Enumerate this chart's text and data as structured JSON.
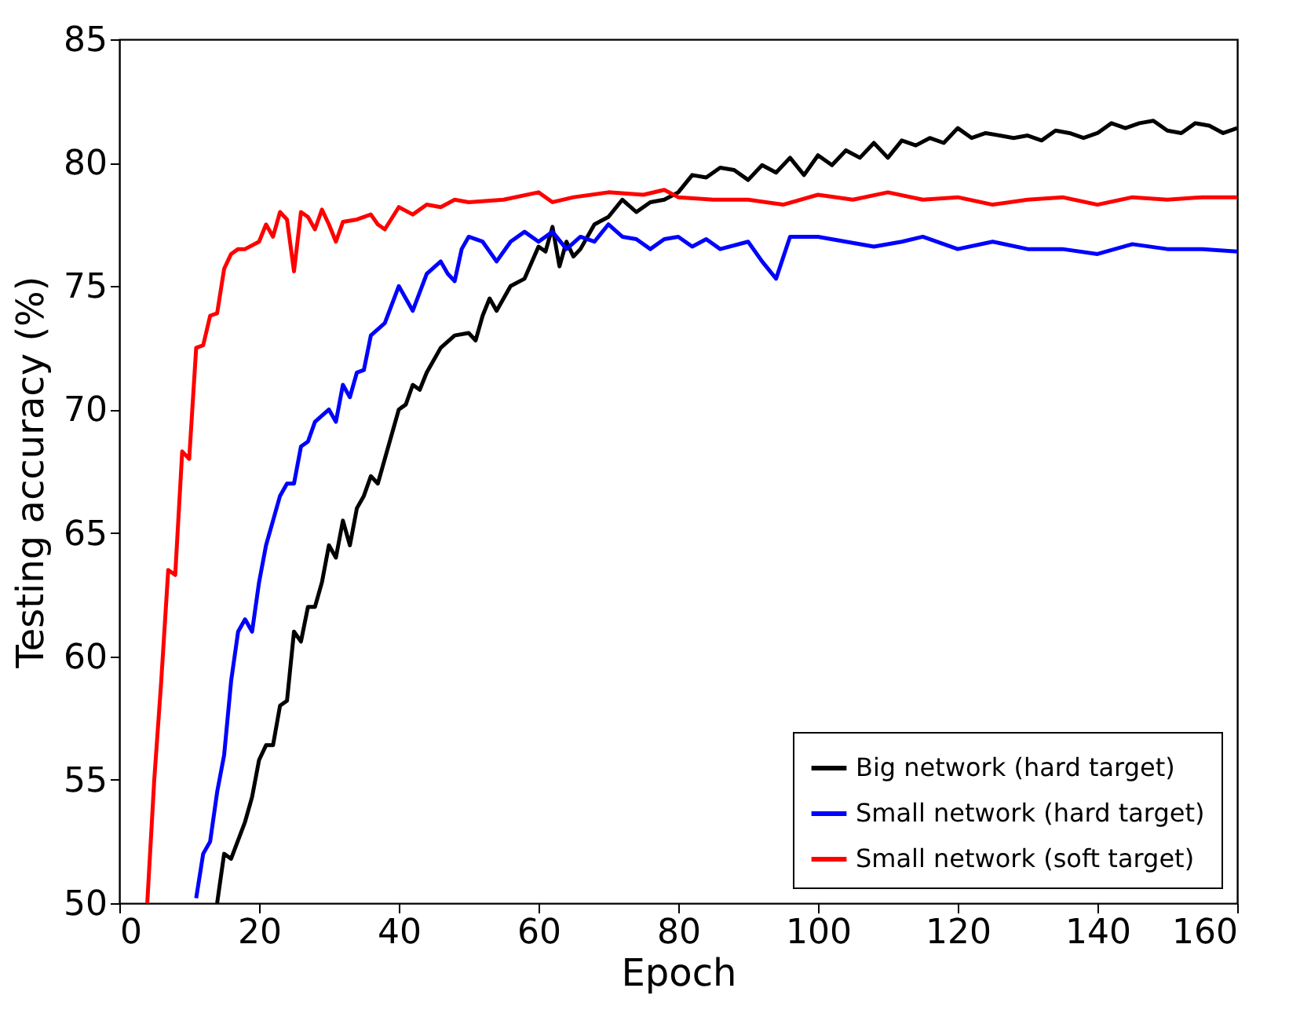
{
  "chart_data": {
    "type": "line",
    "xlabel": "Epoch",
    "ylabel": "Testing accuracy (%)",
    "xlim": [
      0,
      160
    ],
    "xticks": [
      0,
      20,
      40,
      60,
      80,
      100,
      120,
      140,
      160
    ],
    "ylim": [
      50,
      85
    ],
    "yticks": [
      50,
      55,
      60,
      65,
      70,
      75,
      80,
      85
    ],
    "grid": false,
    "legend": "bottom right",
    "marker": "none",
    "line_style": "solid",
    "series": [
      {
        "name": "Big network (hard target)",
        "color": "#000000",
        "x": [
          14,
          15,
          16,
          18,
          19,
          20,
          21,
          22,
          23,
          24,
          25,
          26,
          27,
          28,
          29,
          30,
          31,
          32,
          33,
          34,
          35,
          36,
          37,
          38,
          40,
          41,
          42,
          43,
          44,
          46,
          48,
          50,
          51,
          52,
          53,
          54,
          56,
          58,
          60,
          61,
          62,
          63,
          64,
          65,
          66,
          68,
          70,
          72,
          74,
          76,
          78,
          80,
          82,
          84,
          86,
          88,
          90,
          92,
          94,
          96,
          98,
          100,
          102,
          104,
          106,
          108,
          110,
          112,
          114,
          116,
          118,
          120,
          122,
          124,
          126,
          128,
          130,
          132,
          134,
          136,
          138,
          140,
          142,
          144,
          146,
          148,
          150,
          152,
          154,
          156,
          158,
          160
        ],
        "values": [
          50,
          52,
          51.8,
          53.3,
          54.3,
          55.8,
          56.4,
          56.4,
          58,
          58.2,
          61,
          60.6,
          62,
          62,
          63,
          64.5,
          64,
          65.5,
          64.5,
          66,
          66.5,
          67.3,
          67,
          68,
          70,
          70.2,
          71,
          70.8,
          71.5,
          72.5,
          73,
          73.1,
          72.8,
          73.8,
          74.5,
          74,
          75,
          75.3,
          76.6,
          76.4,
          77.4,
          75.8,
          76.8,
          76.2,
          76.5,
          77.5,
          77.8,
          78.5,
          78,
          78.4,
          78.5,
          78.8,
          79.5,
          79.4,
          79.8,
          79.7,
          79.3,
          79.9,
          79.6,
          80.2,
          79.5,
          80.3,
          79.9,
          80.5,
          80.2,
          80.8,
          80.2,
          80.9,
          80.7,
          81,
          80.8,
          81.4,
          81,
          81.2,
          81.1,
          81,
          81.1,
          80.9,
          81.3,
          81.2,
          81,
          81.2,
          81.6,
          81.4,
          81.6,
          81.7,
          81.3,
          81.2,
          81.6,
          81.5,
          81.2,
          81.4
        ]
      },
      {
        "name": "Small network (hard target)",
        "color": "#0000ff",
        "x": [
          11,
          12,
          13,
          14,
          15,
          16,
          17,
          18,
          19,
          20,
          21,
          22,
          23,
          24,
          25,
          26,
          27,
          28,
          30,
          31,
          32,
          33,
          34,
          35,
          36,
          38,
          40,
          41,
          42,
          44,
          46,
          47,
          48,
          49,
          50,
          52,
          54,
          56,
          58,
          60,
          62,
          64,
          66,
          68,
          70,
          72,
          74,
          76,
          78,
          80,
          82,
          84,
          86,
          90,
          92,
          94,
          96,
          100,
          104,
          108,
          112,
          115,
          120,
          125,
          130,
          135,
          140,
          145,
          150,
          155,
          160
        ],
        "values": [
          50.2,
          52,
          52.5,
          54.5,
          56,
          59,
          61,
          61.5,
          61,
          63,
          64.5,
          65.5,
          66.5,
          67,
          67,
          68.5,
          68.7,
          69.5,
          70,
          69.5,
          71,
          70.5,
          71.5,
          71.6,
          73,
          73.5,
          75,
          74.5,
          74,
          75.5,
          76,
          75.5,
          75.2,
          76.5,
          77,
          76.8,
          76,
          76.8,
          77.2,
          76.8,
          77.2,
          76.5,
          77,
          76.8,
          77.5,
          77,
          76.9,
          76.5,
          76.9,
          77,
          76.6,
          76.9,
          76.5,
          76.8,
          76,
          75.3,
          77,
          77,
          76.8,
          76.6,
          76.8,
          77,
          76.5,
          76.8,
          76.5,
          76.5,
          76.3,
          76.7,
          76.5,
          76.5,
          76.4
        ]
      },
      {
        "name": "Small network (soft target)",
        "color": "#ff0000",
        "x": [
          4,
          5,
          6,
          7,
          8,
          9,
          10,
          11,
          12,
          13,
          14,
          15,
          16,
          17,
          18,
          20,
          21,
          22,
          23,
          24,
          25,
          26,
          27,
          28,
          29,
          30,
          31,
          32,
          34,
          36,
          37,
          38,
          40,
          42,
          44,
          46,
          48,
          50,
          55,
          60,
          62,
          65,
          70,
          75,
          78,
          80,
          85,
          90,
          95,
          100,
          105,
          110,
          115,
          120,
          125,
          130,
          135,
          140,
          145,
          150,
          155,
          160
        ],
        "values": [
          50,
          55,
          59,
          63.5,
          63.3,
          68.3,
          68,
          72.5,
          72.6,
          73.8,
          73.9,
          75.7,
          76.3,
          76.5,
          76.5,
          76.8,
          77.5,
          77,
          78,
          77.7,
          75.6,
          78,
          77.8,
          77.3,
          78.1,
          77.5,
          76.8,
          77.6,
          77.7,
          77.9,
          77.5,
          77.3,
          78.2,
          77.9,
          78.3,
          78.2,
          78.5,
          78.4,
          78.5,
          78.8,
          78.4,
          78.6,
          78.8,
          78.7,
          78.9,
          78.6,
          78.5,
          78.5,
          78.3,
          78.7,
          78.5,
          78.8,
          78.5,
          78.6,
          78.3,
          78.5,
          78.6,
          78.3,
          78.6,
          78.5,
          78.6,
          78.6
        ]
      }
    ]
  }
}
